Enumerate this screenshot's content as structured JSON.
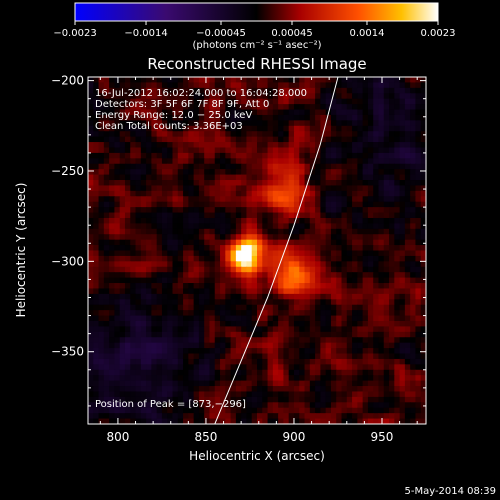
{
  "chart_data": {
    "type": "heatmap",
    "title": "Reconstructed RHESSI Image",
    "xlabel": "Heliocentric X (arcsec)",
    "ylabel": "Heliocentric Y (arcsec)",
    "xlim": [
      783,
      975
    ],
    "ylim": [
      -390,
      -198
    ],
    "x_ticks": [
      {
        "value": 800,
        "label": "800"
      },
      {
        "value": 850,
        "label": "850"
      },
      {
        "value": 900,
        "label": "900"
      },
      {
        "value": 950,
        "label": "950"
      }
    ],
    "y_ticks": [
      {
        "value": -200,
        "label": "−200"
      },
      {
        "value": -250,
        "label": "−250"
      },
      {
        "value": -300,
        "label": "−300"
      },
      {
        "value": -350,
        "label": "−350"
      }
    ],
    "colorbar": {
      "min": -0.0023,
      "max": 0.0023,
      "ticks": [
        {
          "value": -0.0023,
          "label": "−0.0023"
        },
        {
          "value": -0.0014,
          "label": "−0.0014"
        },
        {
          "value": -0.00045,
          "label": "−0.00045"
        },
        {
          "value": 0.00045,
          "label": "0.00045"
        },
        {
          "value": 0.0014,
          "label": "0.0014"
        },
        {
          "value": 0.0023,
          "label": "0.0023"
        }
      ],
      "units": "(photons cm⁻² s⁻¹ asec⁻²)"
    },
    "annotations": [
      "16-Jul-2012 16:02:24.000 to 16:04:28.000",
      "Detectors: 3F 5F 6F 7F 8F 9F, Att 0",
      "Energy Range: 12.0 − 25.0 keV",
      "Clean    Total counts: 3.36E+03"
    ],
    "peak_label": "Position of Peak = [873,−296]",
    "peak": [
      873,
      -296
    ],
    "sources": [
      {
        "x": 873,
        "y": -296,
        "amplitude": 0.0023,
        "sigma": 7
      },
      {
        "x": 898,
        "y": -308,
        "amplitude": 0.0015,
        "sigma": 8
      },
      {
        "x": 895,
        "y": -262,
        "amplitude": 0.0011,
        "sigma": 9
      }
    ],
    "limb_curve": {
      "x": [
        855,
        870,
        885,
        900,
        915,
        925
      ],
      "y": [
        -390,
        -355,
        -320,
        -280,
        -235,
        -198
      ]
    }
  },
  "footer_date": "5-May-2014 08:39"
}
